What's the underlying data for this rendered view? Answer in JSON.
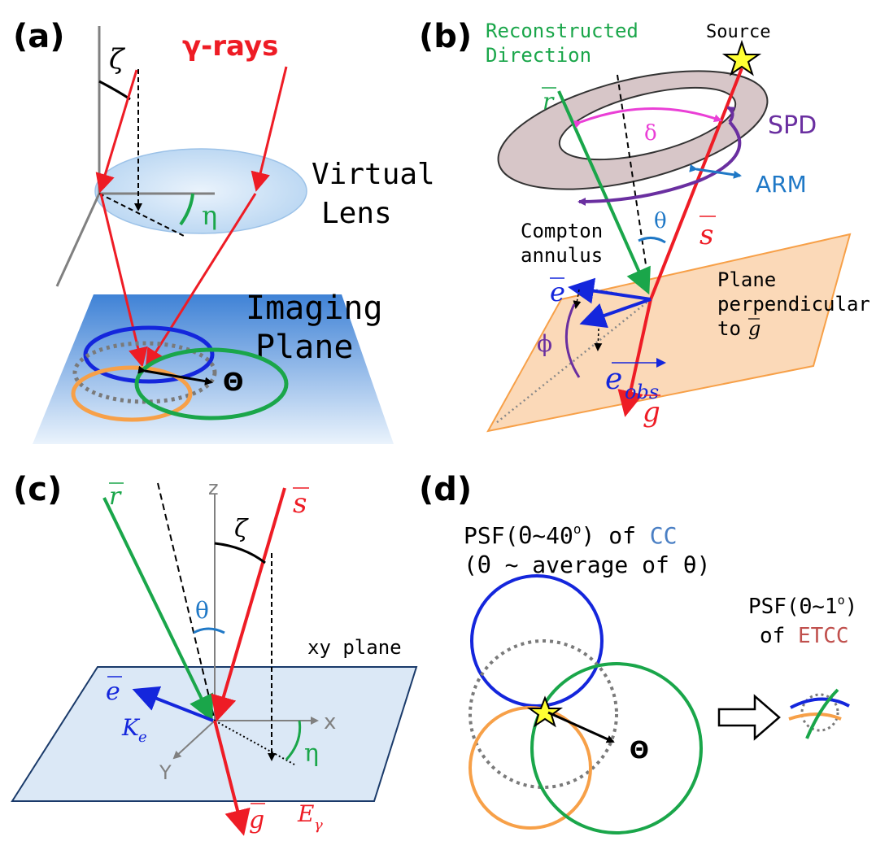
{
  "panels": {
    "a": {
      "label": "(a)",
      "gamma_rays": "γ-rays",
      "zeta": "ζ",
      "eta": "η",
      "virtual": "Virtual",
      "lens": "Lens",
      "imaging": "Imaging",
      "plane": "Plane",
      "Theta": "Θ"
    },
    "b": {
      "label": "(b)",
      "reconstructed": "Reconstructed",
      "direction": "Direction",
      "source": "Source",
      "r_vec": "r",
      "delta": "δ",
      "spd": "SPD",
      "arm": "ARM",
      "theta": "θ",
      "s_vec": "s",
      "compton": "Compton",
      "annulus": "annulus",
      "e_vec": "e",
      "plane_line1": "Plane",
      "plane_line2": "perpendicular",
      "plane_line3": "to",
      "g_inline": "g",
      "phi": "ϕ",
      "e_obs_e": "e",
      "e_obs_sub": "obs",
      "g_vec": "g"
    },
    "c": {
      "label": "(c)",
      "r_vec": "r",
      "z": "z",
      "s_vec": "s",
      "zeta": "ζ",
      "theta": "θ",
      "xy_plane": "xy plane",
      "e_vec": "e",
      "K": "K",
      "K_sub": "e",
      "x": "x",
      "y": "Y",
      "eta": "η",
      "g_vec": "g",
      "E": "E",
      "E_sub": "γ"
    },
    "d": {
      "label": "(d)",
      "psf_cc_prefix": "PSF(Θ~40",
      "psf_cc_deg": "o",
      "psf_cc_mid": ") of ",
      "psf_cc_cc": "CC",
      "psf_cc_note": "(Θ ~ average of θ)",
      "psf_etcc_prefix": "PSF(Θ~1",
      "psf_etcc_deg": "o",
      "psf_etcc_suffix": ")",
      "of": "of ",
      "etcc": "ETCC",
      "Theta": "Θ"
    }
  },
  "colors": {
    "red": "#ee1c25",
    "green": "#1aa64a",
    "blue": "#1426dc",
    "orange": "#f7a048",
    "purple": "#6a2fa0",
    "magenta": "#ea3fd6",
    "sky": "#1f78c6",
    "cc_blue": "#4a7fc4",
    "etcc_red": "#c0504d",
    "black": "#000000",
    "gray": "#808080"
  }
}
